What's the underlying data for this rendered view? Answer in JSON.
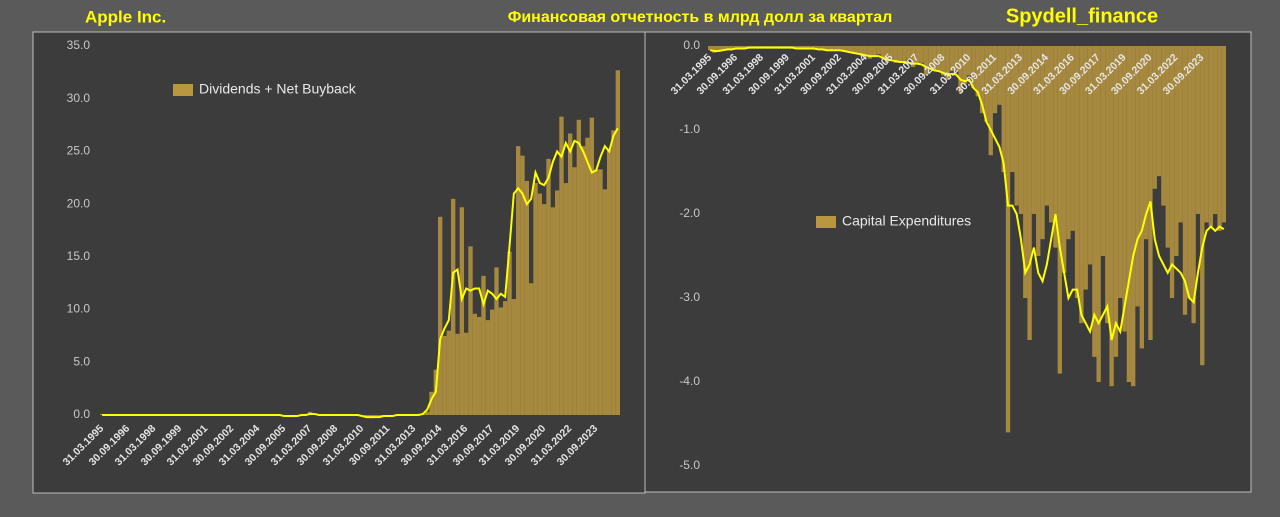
{
  "header": {
    "company": "Apple Inc.",
    "title": "Финансовая отчетность в млрд долл за квартал",
    "source": "Spydell_finance"
  },
  "chart_data": [
    {
      "type": "bar",
      "categories": [
        "31.03.1995",
        null,
        null,
        null,
        null,
        null,
        "30.09.1996",
        null,
        null,
        null,
        null,
        null,
        "31.03.1998",
        null,
        null,
        null,
        null,
        null,
        "30.09.1999",
        null,
        null,
        null,
        null,
        null,
        "31.03.2001",
        null,
        null,
        null,
        null,
        null,
        "30.09.2002",
        null,
        null,
        null,
        null,
        null,
        "31.03.2004",
        null,
        null,
        null,
        null,
        null,
        "30.09.2005",
        null,
        null,
        null,
        null,
        null,
        "31.03.2007",
        null,
        null,
        null,
        null,
        null,
        "30.09.2008",
        null,
        null,
        null,
        null,
        null,
        "31.03.2010",
        null,
        null,
        null,
        null,
        null,
        "30.09.2011",
        null,
        null,
        null,
        null,
        null,
        "31.03.2013",
        null,
        null,
        null,
        null,
        null,
        "30.09.2014",
        null,
        null,
        null,
        null,
        null,
        "31.03.2016",
        null,
        null,
        null,
        null,
        null,
        "30.09.2017",
        null,
        null,
        null,
        null,
        null,
        "31.03.2019",
        null,
        null,
        null,
        null,
        null,
        "30.09.2020",
        null,
        null,
        null,
        null,
        null,
        "31.03.2022",
        null,
        null,
        null,
        null,
        null,
        "30.09.2023",
        null,
        null,
        null,
        null,
        null
      ],
      "series": [
        {
          "name": "Dividends + Net Buyback",
          "color": "#b8973e",
          "values": [
            0.1,
            0.05,
            -0.1,
            0,
            0,
            0,
            0,
            0,
            0,
            0,
            0,
            0,
            0,
            0,
            0,
            0,
            0,
            0,
            0,
            0,
            0,
            0,
            0,
            0,
            0,
            0,
            0,
            0,
            0,
            0,
            0,
            0,
            0,
            0,
            0,
            0,
            0,
            0,
            0,
            0,
            0,
            0,
            -0.1,
            -0.2,
            -0.2,
            -0.1,
            0,
            0.1,
            0.3,
            0.1,
            0,
            -0.1,
            0,
            0.1,
            -0.1,
            0,
            0,
            0,
            -0.1,
            0,
            -0.1,
            -0.2,
            -0.3,
            -0.2,
            -0.2,
            -0.1,
            -0.1,
            -0.1,
            -0.1,
            0,
            0,
            0,
            0,
            0,
            0.1,
            0.3,
            2.2,
            4.3,
            18.8,
            7.5,
            8,
            20.5,
            7.7,
            19.7,
            7.8,
            16,
            9.6,
            9.3,
            13.2,
            9,
            10,
            14,
            10.2,
            10.8,
            15.5,
            11,
            25.5,
            24.6,
            22.2,
            12.5,
            22,
            21,
            20,
            24.3,
            19.7,
            21.3,
            28.3,
            22,
            26.7,
            23.5,
            28,
            25.5,
            26.3,
            28.2,
            23.3,
            23.3,
            21.4,
            25.2,
            27,
            32.7
          ]
        },
        {
          "type": "line",
          "color": "#ffff00",
          "values": [
            0,
            0,
            0,
            0,
            0,
            0,
            0,
            0,
            0,
            0,
            0,
            0,
            0,
            0,
            0,
            0,
            0,
            0,
            0,
            0,
            0,
            0,
            0,
            0,
            0,
            0,
            0,
            0,
            0,
            0,
            0,
            0,
            0,
            0,
            0,
            0,
            0,
            0,
            0,
            0,
            0,
            0,
            -0.1,
            -0.1,
            -0.1,
            -0.1,
            0,
            0,
            0.1,
            0.1,
            0,
            0,
            0,
            0,
            0,
            0,
            0,
            0,
            0,
            0,
            -0.1,
            -0.2,
            -0.2,
            -0.2,
            -0.2,
            -0.1,
            -0.1,
            -0.1,
            0,
            0,
            0,
            0,
            0,
            0,
            0.1,
            0.5,
            1.5,
            2.2,
            7.2,
            8.2,
            9,
            13.5,
            13.8,
            11,
            12,
            11.8,
            12,
            12,
            10.5,
            11.8,
            11.5,
            11,
            11.5,
            11.2,
            16,
            21,
            21.5,
            21,
            20,
            20.5,
            23,
            22,
            21.8,
            22.5,
            24,
            25,
            24.5,
            25.8,
            25,
            26,
            25.8,
            25,
            24,
            23,
            23.2,
            24.5,
            25.5,
            25,
            26.5,
            27.2
          ]
        }
      ],
      "ylim": [
        0,
        35
      ],
      "yticks": [
        {
          "value": 0,
          "label": "0.0"
        },
        {
          "value": 5,
          "label": "5.0"
        },
        {
          "value": 10,
          "label": "10.0"
        },
        {
          "value": 15,
          "label": "15.0"
        },
        {
          "value": 20,
          "label": "20.0"
        },
        {
          "value": 25,
          "label": "25.0"
        },
        {
          "value": 30,
          "label": "30.0"
        },
        {
          "value": 35,
          "label": "35.0"
        }
      ],
      "grid": false
    },
    {
      "type": "bar",
      "categories": [
        "31.03.1995",
        null,
        null,
        null,
        null,
        null,
        "30.09.1996",
        null,
        null,
        null,
        null,
        null,
        "31.03.1998",
        null,
        null,
        null,
        null,
        null,
        "30.09.1999",
        null,
        null,
        null,
        null,
        null,
        "31.03.2001",
        null,
        null,
        null,
        null,
        null,
        "30.09.2002",
        null,
        null,
        null,
        null,
        null,
        "31.03.2004",
        null,
        null,
        null,
        null,
        null,
        "30.09.2005",
        null,
        null,
        null,
        null,
        null,
        "31.03.2007",
        null,
        null,
        null,
        null,
        null,
        "30.09.2008",
        null,
        null,
        null,
        null,
        null,
        "31.03.2010",
        null,
        null,
        null,
        null,
        null,
        "30.09.2011",
        null,
        null,
        null,
        null,
        null,
        "31.03.2013",
        null,
        null,
        null,
        null,
        null,
        "30.09.2014",
        null,
        null,
        null,
        null,
        null,
        "31.03.2016",
        null,
        null,
        null,
        null,
        null,
        "30.09.2017",
        null,
        null,
        null,
        null,
        null,
        "31.03.2019",
        null,
        null,
        null,
        null,
        null,
        "30.09.2020",
        null,
        null,
        null,
        null,
        null,
        "31.03.2022",
        null,
        null,
        null,
        null,
        null,
        "30.09.2023",
        null,
        null,
        null,
        null,
        null
      ],
      "series": [
        {
          "name": "Capital Expenditures",
          "color": "#b8973e",
          "values": [
            -0.05,
            -0.08,
            -0.06,
            -0.05,
            -0.04,
            -0.03,
            -0.03,
            -0.02,
            -0.03,
            -0.02,
            -0.02,
            -0.02,
            -0.02,
            -0.02,
            -0.03,
            -0.02,
            -0.02,
            -0.02,
            -0.03,
            -0.03,
            -0.04,
            -0.03,
            -0.02,
            -0.02,
            -0.03,
            -0.04,
            -0.05,
            -0.05,
            -0.05,
            -0.04,
            -0.05,
            -0.06,
            -0.07,
            -0.08,
            -0.09,
            -0.1,
            -0.1,
            -0.15,
            -0.12,
            -0.1,
            -0.15,
            -0.2,
            -0.15,
            -0.2,
            -0.18,
            -0.2,
            -0.15,
            -0.25,
            -0.2,
            -0.2,
            -0.35,
            -0.25,
            -0.3,
            -0.3,
            -0.35,
            -0.4,
            -0.3,
            -0.3,
            -0.55,
            -0.45,
            -0.35,
            -0.5,
            -0.6,
            -0.8,
            -0.9,
            -1.3,
            -0.8,
            -0.7,
            -1.5,
            -4.6,
            -1.5,
            -1.9,
            -2.0,
            -3.0,
            -3.5,
            -2.0,
            -2.5,
            -2.3,
            -1.9,
            -2.1,
            -2.4,
            -3.9,
            -2.7,
            -2.3,
            -2.2,
            -3.0,
            -3.3,
            -2.9,
            -2.6,
            -3.7,
            -4.0,
            -2.5,
            -3.3,
            -4.05,
            -3.7,
            -3.0,
            -3.4,
            -4.0,
            -4.05,
            -3.1,
            -3.6,
            -2.3,
            -3.5,
            -1.7,
            -1.55,
            -1.9,
            -2.4,
            -3.0,
            -2.5,
            -2.1,
            -3.2,
            -3.0,
            -3.3,
            -2.0,
            -3.8,
            -2.1,
            -2.15,
            -2.0,
            -2.2,
            -2.1
          ]
        },
        {
          "type": "line",
          "color": "#ffff00",
          "values": [
            -0.05,
            -0.06,
            -0.06,
            -0.05,
            -0.04,
            -0.04,
            -0.03,
            -0.03,
            -0.03,
            -0.02,
            -0.02,
            -0.02,
            -0.02,
            -0.02,
            -0.02,
            -0.02,
            -0.02,
            -0.02,
            -0.02,
            -0.02,
            -0.03,
            -0.03,
            -0.03,
            -0.03,
            -0.03,
            -0.04,
            -0.04,
            -0.05,
            -0.05,
            -0.05,
            -0.05,
            -0.06,
            -0.07,
            -0.08,
            -0.09,
            -0.1,
            -0.11,
            -0.12,
            -0.12,
            -0.12,
            -0.14,
            -0.16,
            -0.17,
            -0.18,
            -0.19,
            -0.19,
            -0.2,
            -0.21,
            -0.21,
            -0.22,
            -0.25,
            -0.27,
            -0.29,
            -0.3,
            -0.32,
            -0.34,
            -0.33,
            -0.34,
            -0.4,
            -0.42,
            -0.4,
            -0.5,
            -0.55,
            -0.7,
            -0.9,
            -1.0,
            -1.1,
            -1.2,
            -1.4,
            -1.9,
            -1.9,
            -2.0,
            -2.3,
            -2.7,
            -2.6,
            -2.4,
            -2.7,
            -2.8,
            -2.6,
            -2.3,
            -2.0,
            -2.4,
            -2.7,
            -3.0,
            -2.9,
            -2.9,
            -3.2,
            -3.3,
            -3.4,
            -3.2,
            -3.3,
            -3.2,
            -3.1,
            -3.5,
            -3.3,
            -3.4,
            -3.1,
            -2.8,
            -2.5,
            -2.3,
            -2.2,
            -2.0,
            -1.85,
            -2.3,
            -2.5,
            -2.6,
            -2.7,
            -2.6,
            -2.65,
            -2.7,
            -2.8,
            -3.0,
            -3.05,
            -2.7,
            -2.4,
            -2.2,
            -2.15,
            -2.2,
            -2.15,
            -2.18
          ]
        }
      ],
      "ylim": [
        -5,
        0
      ],
      "yticks": [
        {
          "value": 0,
          "label": "0.0"
        },
        {
          "value": -1,
          "label": "-1.0"
        },
        {
          "value": -2,
          "label": "-2.0"
        },
        {
          "value": -3,
          "label": "-3.0"
        },
        {
          "value": -4,
          "label": "-4.0"
        },
        {
          "value": -5,
          "label": "-5.0"
        }
      ],
      "grid": false
    }
  ]
}
